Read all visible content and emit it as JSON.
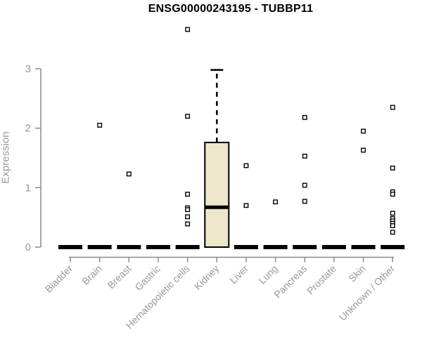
{
  "chart_data": {
    "type": "boxplot",
    "title": "ENSG00000243195 - TUBBP11",
    "ylabel": "Expression",
    "xlabel": "",
    "ylim": [
      0,
      3
    ],
    "yticks": [
      0,
      1,
      2,
      3
    ],
    "grid": false,
    "legend": null,
    "categories": [
      "Bladder",
      "Brain",
      "Breast",
      "Gastric",
      "Hematopoietic cells",
      "Kidney",
      "Liver",
      "Lung",
      "Pancreas",
      "Prostate",
      "Skin",
      "Unknown / Other"
    ],
    "boxes": [
      {
        "category": "Bladder",
        "q1": 0,
        "median": 0,
        "q3": 0,
        "whisker_low": 0,
        "whisker_high": 0
      },
      {
        "category": "Brain",
        "q1": 0,
        "median": 0,
        "q3": 0,
        "whisker_low": 0,
        "whisker_high": 0
      },
      {
        "category": "Breast",
        "q1": 0,
        "median": 0,
        "q3": 0,
        "whisker_low": 0,
        "whisker_high": 0
      },
      {
        "category": "Gastric",
        "q1": 0,
        "median": 0,
        "q3": 0,
        "whisker_low": 0,
        "whisker_high": 0
      },
      {
        "category": "Hematopoietic cells",
        "q1": 0,
        "median": 0,
        "q3": 0,
        "whisker_low": 0,
        "whisker_high": 0
      },
      {
        "category": "Kidney",
        "q1": 0,
        "median": 0.67,
        "q3": 1.76,
        "whisker_low": 0,
        "whisker_high": 2.98
      },
      {
        "category": "Liver",
        "q1": 0,
        "median": 0,
        "q3": 0,
        "whisker_low": 0,
        "whisker_high": 0
      },
      {
        "category": "Lung",
        "q1": 0,
        "median": 0,
        "q3": 0,
        "whisker_low": 0,
        "whisker_high": 0
      },
      {
        "category": "Pancreas",
        "q1": 0,
        "median": 0,
        "q3": 0,
        "whisker_low": 0,
        "whisker_high": 0
      },
      {
        "category": "Prostate",
        "q1": 0,
        "median": 0,
        "q3": 0,
        "whisker_low": 0,
        "whisker_high": 0
      },
      {
        "category": "Skin",
        "q1": 0,
        "median": 0,
        "q3": 0,
        "whisker_low": 0,
        "whisker_high": 0
      },
      {
        "category": "Unknown / Other",
        "q1": 0,
        "median": 0,
        "q3": 0,
        "whisker_low": 0,
        "whisker_high": 0
      }
    ],
    "outliers": [
      {
        "category": "Brain",
        "values": [
          2.05
        ]
      },
      {
        "category": "Breast",
        "values": [
          1.23
        ]
      },
      {
        "category": "Hematopoietic cells",
        "values": [
          3.66,
          2.2,
          0.89,
          0.66,
          0.63,
          0.51,
          0.39
        ]
      },
      {
        "category": "Liver",
        "values": [
          1.37,
          0.7
        ]
      },
      {
        "category": "Lung",
        "values": [
          0.76
        ]
      },
      {
        "category": "Pancreas",
        "values": [
          2.18,
          1.53,
          1.04,
          0.77
        ]
      },
      {
        "category": "Skin",
        "values": [
          1.95,
          1.63
        ]
      },
      {
        "category": "Unknown / Other",
        "values": [
          2.35,
          1.33,
          0.93,
          0.89,
          0.57,
          0.48,
          0.44,
          0.4,
          0.36,
          0.25
        ]
      }
    ],
    "colors": {
      "box_fill": "#ede7cb",
      "box_border": "#000000",
      "median": "#000000",
      "whisker": "#000000",
      "point_fill": "#ffffff",
      "point_border": "#000000",
      "axis": "#8a8a8a",
      "tick_label": "#999999",
      "title": "#000000",
      "background": "#ffffff"
    },
    "style": {
      "whisker_dashed": true,
      "point_marker": "open-square"
    }
  }
}
